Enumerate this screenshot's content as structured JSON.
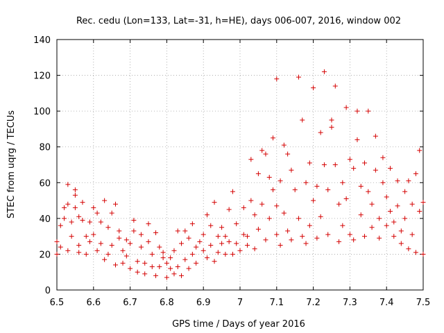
{
  "chart_data": {
    "type": "scatter",
    "title": "Rec. cedu (Lon=133, Lat=-31, h=HE), days 006-007, 2016, window 002",
    "xlabel": "GPS time / Days of year 2016",
    "ylabel": "STEC from uqrg / TECUs",
    "xlim": [
      6.5,
      7.5
    ],
    "ylim": [
      0,
      140
    ],
    "xticks": [
      6.5,
      6.6,
      6.7,
      6.8,
      6.9,
      7.0,
      7.1,
      7.2,
      7.3,
      7.4,
      7.5
    ],
    "xtick_labels": [
      "6.5",
      "6.6",
      "6.7",
      "6.8",
      "6.9",
      "7",
      "7.1",
      "7.2",
      "7.3",
      "7.4",
      "7.5"
    ],
    "yticks": [
      0,
      20,
      40,
      60,
      80,
      100,
      120,
      140
    ],
    "ytick_labels": [
      "0",
      "20",
      "40",
      "60",
      "80",
      "100",
      "120",
      "140"
    ],
    "grid": true,
    "marker": "+",
    "color": "#d40000",
    "series": [
      {
        "name": "STEC",
        "points": [
          [
            6.5,
            27
          ],
          [
            6.5,
            20
          ],
          [
            6.51,
            24
          ],
          [
            6.51,
            36
          ],
          [
            6.52,
            40
          ],
          [
            6.52,
            46
          ],
          [
            6.53,
            59
          ],
          [
            6.53,
            48
          ],
          [
            6.53,
            22
          ],
          [
            6.54,
            30
          ],
          [
            6.54,
            38
          ],
          [
            6.55,
            56
          ],
          [
            6.55,
            53
          ],
          [
            6.55,
            46
          ],
          [
            6.56,
            41
          ],
          [
            6.56,
            25
          ],
          [
            6.56,
            21
          ],
          [
            6.57,
            49
          ],
          [
            6.57,
            39
          ],
          [
            6.58,
            30
          ],
          [
            6.58,
            20
          ],
          [
            6.59,
            38
          ],
          [
            6.59,
            27
          ],
          [
            6.6,
            31
          ],
          [
            6.6,
            46
          ],
          [
            6.61,
            43
          ],
          [
            6.61,
            22
          ],
          [
            6.62,
            26
          ],
          [
            6.62,
            38
          ],
          [
            6.63,
            50
          ],
          [
            6.63,
            17
          ],
          [
            6.64,
            20
          ],
          [
            6.64,
            35
          ],
          [
            6.65,
            43
          ],
          [
            6.65,
            25
          ],
          [
            6.66,
            48
          ],
          [
            6.66,
            14
          ],
          [
            6.67,
            29
          ],
          [
            6.67,
            33
          ],
          [
            6.68,
            15
          ],
          [
            6.68,
            22
          ],
          [
            6.69,
            28
          ],
          [
            6.69,
            19
          ],
          [
            6.7,
            12
          ],
          [
            6.7,
            26
          ],
          [
            6.71,
            33
          ],
          [
            6.71,
            39
          ],
          [
            6.72,
            10
          ],
          [
            6.72,
            16
          ],
          [
            6.73,
            24
          ],
          [
            6.73,
            31
          ],
          [
            6.74,
            15
          ],
          [
            6.74,
            9
          ],
          [
            6.75,
            37
          ],
          [
            6.75,
            27
          ],
          [
            6.76,
            20
          ],
          [
            6.76,
            13
          ],
          [
            6.77,
            32
          ],
          [
            6.77,
            8
          ],
          [
            6.78,
            24
          ],
          [
            6.78,
            13
          ],
          [
            6.79,
            18
          ],
          [
            6.79,
            21
          ],
          [
            6.8,
            7
          ],
          [
            6.8,
            15
          ],
          [
            6.81,
            12
          ],
          [
            6.81,
            18
          ],
          [
            6.82,
            9
          ],
          [
            6.82,
            22
          ],
          [
            6.83,
            13
          ],
          [
            6.83,
            33
          ],
          [
            6.84,
            26
          ],
          [
            6.84,
            8
          ],
          [
            6.85,
            17
          ],
          [
            6.85,
            33
          ],
          [
            6.86,
            12
          ],
          [
            6.86,
            29
          ],
          [
            6.87,
            20
          ],
          [
            6.87,
            37
          ],
          [
            6.88,
            15
          ],
          [
            6.88,
            24
          ],
          [
            6.89,
            27
          ],
          [
            6.9,
            22
          ],
          [
            6.9,
            31
          ],
          [
            6.91,
            42
          ],
          [
            6.91,
            18
          ],
          [
            6.92,
            36
          ],
          [
            6.92,
            25
          ],
          [
            6.93,
            49
          ],
          [
            6.93,
            16
          ],
          [
            6.94,
            30
          ],
          [
            6.94,
            21
          ],
          [
            6.95,
            26
          ],
          [
            6.95,
            35
          ],
          [
            6.96,
            20
          ],
          [
            6.96,
            30
          ],
          [
            6.97,
            45
          ],
          [
            6.97,
            27
          ],
          [
            6.98,
            55
          ],
          [
            6.98,
            20
          ],
          [
            6.99,
            37
          ],
          [
            6.99,
            26
          ],
          [
            7.0,
            22
          ],
          [
            7.01,
            46
          ],
          [
            7.01,
            31
          ],
          [
            7.02,
            30
          ],
          [
            7.02,
            25
          ],
          [
            7.03,
            73
          ],
          [
            7.03,
            50
          ],
          [
            7.04,
            42
          ],
          [
            7.04,
            23
          ],
          [
            7.05,
            65
          ],
          [
            7.05,
            34
          ],
          [
            7.06,
            78
          ],
          [
            7.06,
            48
          ],
          [
            7.07,
            76
          ],
          [
            7.07,
            28
          ],
          [
            7.08,
            63
          ],
          [
            7.08,
            40
          ],
          [
            7.09,
            85
          ],
          [
            7.09,
            56
          ],
          [
            7.1,
            118
          ],
          [
            7.1,
            47
          ],
          [
            7.1,
            31
          ],
          [
            7.11,
            61
          ],
          [
            7.11,
            25
          ],
          [
            7.12,
            81
          ],
          [
            7.12,
            43
          ],
          [
            7.13,
            76
          ],
          [
            7.13,
            33
          ],
          [
            7.14,
            67
          ],
          [
            7.14,
            28
          ],
          [
            7.15,
            56
          ],
          [
            7.16,
            119
          ],
          [
            7.16,
            40
          ],
          [
            7.17,
            95
          ],
          [
            7.17,
            30
          ],
          [
            7.18,
            60
          ],
          [
            7.18,
            26
          ],
          [
            7.19,
            71
          ],
          [
            7.19,
            36
          ],
          [
            7.2,
            113
          ],
          [
            7.2,
            50
          ],
          [
            7.21,
            58
          ],
          [
            7.21,
            29
          ],
          [
            7.22,
            88
          ],
          [
            7.22,
            41
          ],
          [
            7.23,
            122
          ],
          [
            7.23,
            70
          ],
          [
            7.24,
            56
          ],
          [
            7.24,
            31
          ],
          [
            7.25,
            91
          ],
          [
            7.25,
            95
          ],
          [
            7.26,
            114
          ],
          [
            7.26,
            70
          ],
          [
            7.27,
            48
          ],
          [
            7.27,
            27
          ],
          [
            7.28,
            60
          ],
          [
            7.28,
            36
          ],
          [
            7.29,
            102
          ],
          [
            7.29,
            51
          ],
          [
            7.3,
            73
          ],
          [
            7.3,
            31
          ],
          [
            7.31,
            68
          ],
          [
            7.31,
            28
          ],
          [
            7.32,
            100
          ],
          [
            7.32,
            84
          ],
          [
            7.33,
            58
          ],
          [
            7.33,
            42
          ],
          [
            7.34,
            71
          ],
          [
            7.34,
            30
          ],
          [
            7.35,
            100
          ],
          [
            7.35,
            55
          ],
          [
            7.36,
            48
          ],
          [
            7.36,
            35
          ],
          [
            7.37,
            86
          ],
          [
            7.37,
            67
          ],
          [
            7.38,
            40
          ],
          [
            7.38,
            29
          ],
          [
            7.39,
            74
          ],
          [
            7.39,
            60
          ],
          [
            7.4,
            52
          ],
          [
            7.4,
            36
          ],
          [
            7.41,
            68
          ],
          [
            7.41,
            44
          ],
          [
            7.42,
            38
          ],
          [
            7.42,
            30
          ],
          [
            7.43,
            61
          ],
          [
            7.43,
            47
          ],
          [
            7.44,
            33
          ],
          [
            7.44,
            26
          ],
          [
            7.45,
            55
          ],
          [
            7.45,
            40
          ],
          [
            7.46,
            61
          ],
          [
            7.46,
            23
          ],
          [
            7.47,
            48
          ],
          [
            7.47,
            31
          ],
          [
            7.48,
            65
          ],
          [
            7.48,
            21
          ],
          [
            7.49,
            78
          ],
          [
            7.49,
            44
          ],
          [
            7.5,
            20
          ],
          [
            7.5,
            49
          ]
        ]
      }
    ]
  }
}
